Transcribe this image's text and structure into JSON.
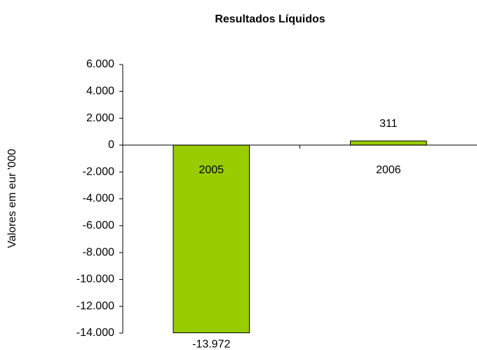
{
  "chart_data": {
    "type": "bar",
    "title": "Resultados Líquidos",
    "y_label": "Valores em eur '000",
    "categories": [
      "2005",
      "2006"
    ],
    "values": [
      -13972,
      311
    ],
    "value_labels": [
      "-13.972",
      "311"
    ],
    "color": "#99cc00",
    "ylim": [
      -14000,
      6000
    ],
    "yticks": [
      {
        "value": 6000,
        "label": "6.000"
      },
      {
        "value": 4000,
        "label": "4.000"
      },
      {
        "value": 2000,
        "label": "2.000"
      },
      0,
      {
        "value": -2000,
        "label": "-2.000"
      },
      {
        "value": -4000,
        "label": "-4.000"
      },
      {
        "value": -6000,
        "label": "-6.000"
      },
      {
        "value": -8000,
        "label": "-8.000"
      },
      {
        "value": -10000,
        "label": "-10.000"
      },
      {
        "value": -12000,
        "label": "-12.000"
      },
      {
        "value": -14000,
        "label": "-14.000"
      }
    ],
    "grid": false
  }
}
